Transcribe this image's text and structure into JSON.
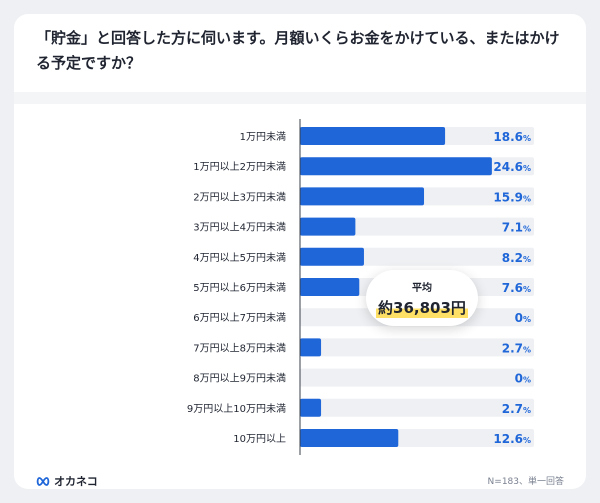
{
  "header": {
    "title": "「貯金」と回答した方に伺います。月額いくらお金をかけている、またはかける予定ですか？"
  },
  "chart_data": {
    "type": "bar",
    "orientation": "horizontal",
    "categories": [
      "1万円未満",
      "1万円以上2万円未満",
      "2万円以上3万円未満",
      "3万円以上4万円未満",
      "4万円以上5万円未満",
      "5万円以上6万円未満",
      "6万円以上7万円未満",
      "7万円以上8万円未満",
      "8万円以上9万円未満",
      "9万円以上10万円未満",
      "10万円以上"
    ],
    "values": [
      18.6,
      24.6,
      15.9,
      7.1,
      8.2,
      7.6,
      0,
      2.7,
      0,
      2.7,
      12.6
    ],
    "value_labels": [
      "18.6",
      "24.6",
      "15.9",
      "7.1",
      "8.2",
      "7.6",
      "0",
      "2.7",
      "0",
      "2.7",
      "12.6"
    ],
    "value_suffix": "%",
    "xlim": [
      0,
      30
    ],
    "bar_color": "#1f66d9",
    "track_color": "#eef0f3",
    "annotation": {
      "label": "平均",
      "value": "約36,803円"
    }
  },
  "footer": {
    "brand": "オカネコ",
    "note": "N=183、単一回答"
  },
  "colors": {
    "accent": "#1f66d9",
    "highlight": "#ffe066"
  }
}
